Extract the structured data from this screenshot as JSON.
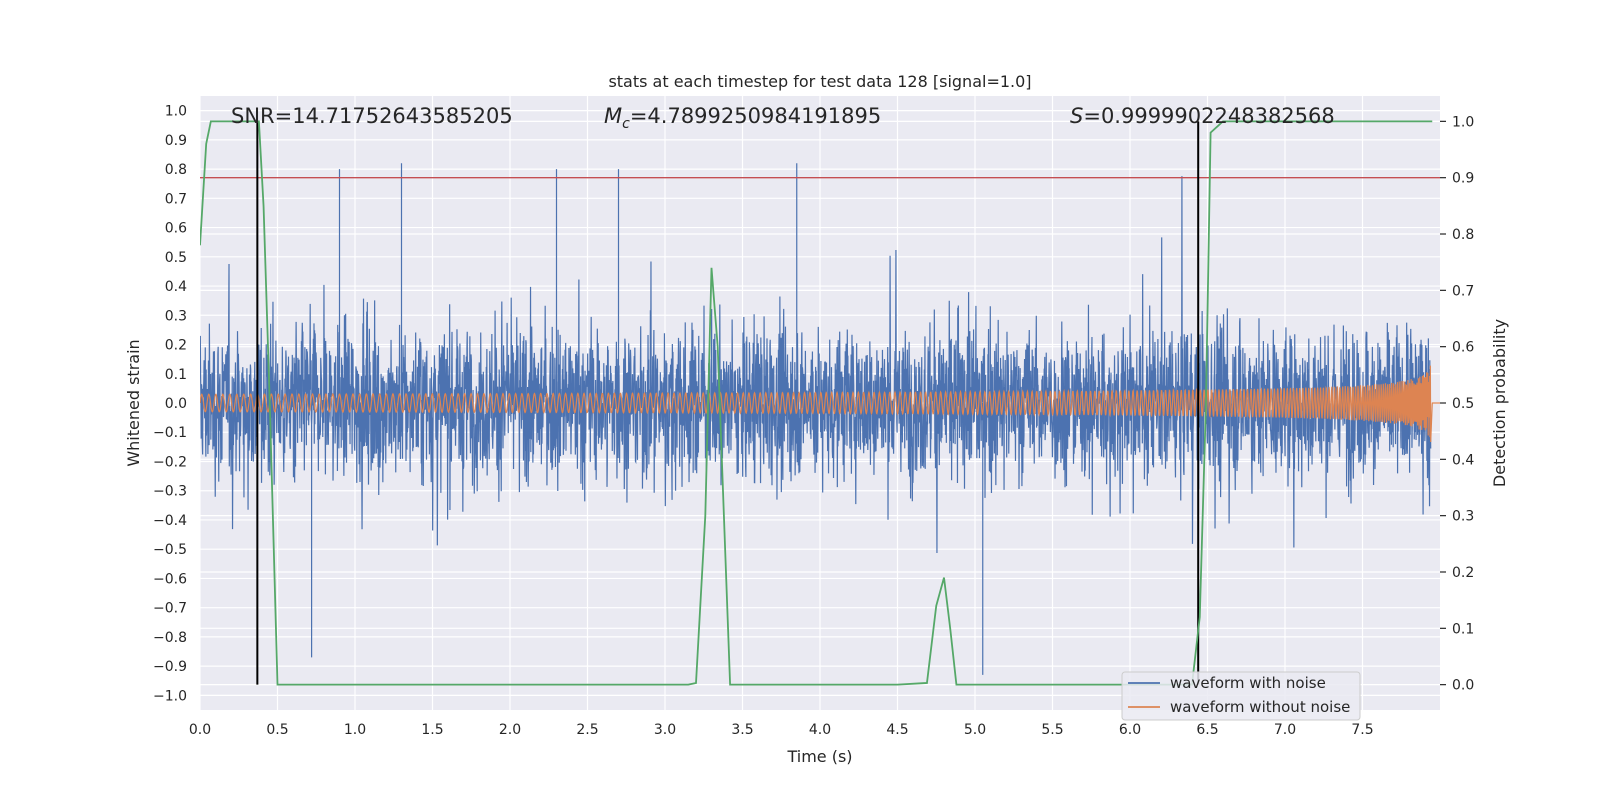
{
  "chart_data": {
    "type": "line",
    "title": "stats at each timestep for test data 128 [signal=1.0]",
    "xlabel": "Time (s)",
    "ylabel": "Whitened strain",
    "y2label": "Detection probability",
    "xlim": [
      0.0,
      8.0
    ],
    "ylim": [
      -1.05,
      1.05
    ],
    "y2lim": [
      -0.045,
      1.045
    ],
    "xticks": [
      "0.0",
      "0.5",
      "1.0",
      "1.5",
      "2.0",
      "2.5",
      "3.0",
      "3.5",
      "4.0",
      "4.5",
      "5.0",
      "5.5",
      "6.0",
      "6.5",
      "7.0",
      "7.5"
    ],
    "xtick_values": [
      0.0,
      0.5,
      1.0,
      1.5,
      2.0,
      2.5,
      3.0,
      3.5,
      4.0,
      4.5,
      5.0,
      5.5,
      6.0,
      6.5,
      7.0,
      7.5
    ],
    "yticks": [
      "1.0",
      "0.9",
      "0.8",
      "0.7",
      "0.6",
      "0.5",
      "0.4",
      "0.3",
      "0.2",
      "0.1",
      "0.0",
      "−0.1",
      "−0.2",
      "−0.3",
      "−0.4",
      "−0.5",
      "−0.6",
      "−0.7",
      "−0.8",
      "−0.9",
      "−1.0"
    ],
    "ytick_values": [
      1.0,
      0.9,
      0.8,
      0.7,
      0.6,
      0.5,
      0.4,
      0.3,
      0.2,
      0.1,
      0.0,
      -0.1,
      -0.2,
      -0.3,
      -0.4,
      -0.5,
      -0.6,
      -0.7,
      -0.8,
      -0.9,
      -1.0
    ],
    "y2ticks": [
      "1.0",
      "0.9",
      "0.8",
      "0.7",
      "0.6",
      "0.5",
      "0.4",
      "0.3",
      "0.2",
      "0.1",
      "0.0"
    ],
    "y2tick_values": [
      1.0,
      0.9,
      0.8,
      0.7,
      0.6,
      0.5,
      0.4,
      0.3,
      0.2,
      0.1,
      0.0
    ],
    "annotations": {
      "snr": "SNR=14.71752643585205",
      "mc_symbol": "M",
      "mc_sub": "c",
      "mc_value": "=4.7899250984191895",
      "s_symbol": "S",
      "s_value": "=0.9999902248382568"
    },
    "noise": {
      "name": "waveform with noise",
      "color": "#4c72b0",
      "typical_amplitude": 0.3,
      "peak_max": 1.0,
      "peak_min": -0.93,
      "peak_times": [
        0.9,
        1.3,
        2.3,
        3.85,
        5.05,
        0.72,
        2.7
      ]
    },
    "signal": {
      "name": "waveform without noise",
      "color": "#dd8452",
      "initial_amplitude": 0.03,
      "final_amplitude": 0.32,
      "end_time": 7.94
    },
    "probability": {
      "name": "Detection probability",
      "color": "#55a868",
      "t": [
        0.0,
        0.04,
        0.07,
        0.1,
        0.2,
        0.3,
        0.35,
        0.38,
        0.41,
        0.45,
        0.5,
        0.6,
        0.7,
        0.8,
        1.0,
        2.0,
        3.0,
        3.15,
        3.2,
        3.26,
        3.3,
        3.34,
        3.38,
        3.42,
        3.5,
        4.0,
        4.5,
        4.69,
        4.75,
        4.8,
        4.84,
        4.88,
        5.0,
        6.0,
        6.3,
        6.4,
        6.45,
        6.49,
        6.52,
        6.6,
        7.0,
        7.5,
        7.95
      ],
      "p": [
        0.78,
        0.96,
        1.0,
        1.0,
        1.0,
        1.0,
        1.0,
        1.0,
        0.85,
        0.5,
        0.0,
        0.0,
        0.0,
        0.0,
        0.0,
        0.0,
        0.0,
        0.0,
        0.003,
        0.3,
        0.74,
        0.6,
        0.3,
        0.0,
        0.0,
        0.0,
        0.0,
        0.003,
        0.14,
        0.19,
        0.1,
        0.0,
        0.0,
        0.0,
        0.0,
        0.0,
        0.12,
        0.5,
        0.98,
        1.0,
        1.0,
        1.0,
        1.0
      ]
    },
    "threshold": {
      "value": 0.9,
      "color": "#c44e52"
    },
    "vlines": {
      "times": [
        0.37,
        6.44
      ],
      "from": 0.0,
      "to": 1.0,
      "color": "#000000"
    },
    "legend": {
      "placement": "lower-right",
      "entries": [
        {
          "label": "waveform with noise",
          "color": "#4c72b0"
        },
        {
          "label": "waveform without noise",
          "color": "#dd8452"
        }
      ]
    },
    "grid": true,
    "background": "#eaeaf2"
  }
}
